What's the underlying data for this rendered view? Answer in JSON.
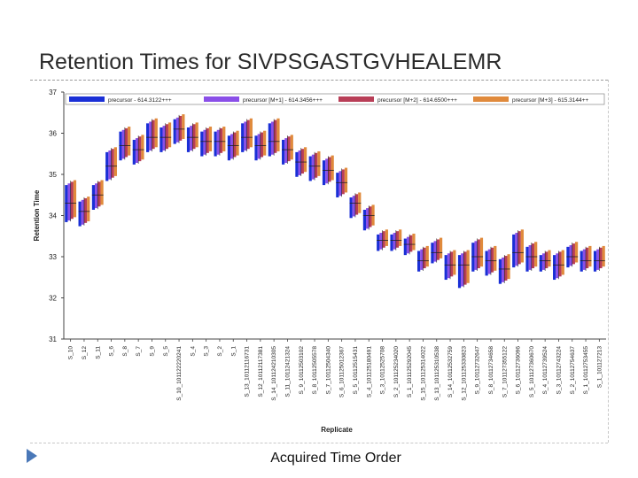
{
  "slide": {
    "title": "Retention Times for SIVPSGASTGVHEALEMR",
    "caption": "Acquired Time Order"
  },
  "chart_data": {
    "type": "box",
    "title": "",
    "xlabel": "Replicate",
    "ylabel": "Retention Time",
    "ylim": [
      31,
      37
    ],
    "yticks": [
      31,
      32,
      33,
      34,
      35,
      36,
      37
    ],
    "grid": false,
    "legend_position": "top",
    "series": [
      {
        "name": "precursor - 614.3122+++",
        "color": "#1a2fd6"
      },
      {
        "name": "precursor [M+1] - 614.3456+++",
        "color": "#8a4fe8"
      },
      {
        "name": "precursor [M+2] - 614.6500+++",
        "color": "#b83e57"
      },
      {
        "name": "precursor [M+3] - 615.3144++",
        "color": "#e08a3c"
      }
    ],
    "categories": [
      "S_10",
      "S_12",
      "S_11",
      "S_6",
      "S_8",
      "S_7",
      "S_9",
      "S_5",
      "S_10_101122220241",
      "S_4",
      "S_3",
      "S_2",
      "S_1",
      "S_13_10112116731",
      "S_12_10112117381",
      "S_14_101124210305",
      "S_11_10112421324",
      "S_9_10112503102",
      "S_8_10112505578",
      "S_7_10112504340",
      "S_6_101125012367",
      "S_5_10112515431",
      "S_4_101125180491",
      "S_3_10112525708",
      "S_2_101125234020",
      "S_1_101125292045",
      "S_15_101125314022",
      "S_13_101125310538",
      "S_14_10112532759",
      "S_12_101125330823",
      "S_9_10112732647",
      "S_8_10112734658",
      "S_7_101127355122",
      "S_6_10112736096",
      "S_5_101127360670",
      "S_4_10112739524",
      "S_3_10112743224",
      "S_2_10112754637",
      "S_1_10112753455",
      "S_1_101127213"
    ],
    "values": [
      34.3,
      34.1,
      34.5,
      35.2,
      35.7,
      35.6,
      35.9,
      35.9,
      36.1,
      35.9,
      35.8,
      35.8,
      35.7,
      35.9,
      35.7,
      35.8,
      35.6,
      35.3,
      35.2,
      35.1,
      34.8,
      34.3,
      34.0,
      33.4,
      33.4,
      33.3,
      32.9,
      33.1,
      32.8,
      32.8,
      33.0,
      32.9,
      32.7,
      33.1,
      33.0,
      32.9,
      32.8,
      33.0,
      32.9,
      32.9
    ],
    "ranges": [
      [
        33.9,
        34.8
      ],
      [
        33.8,
        34.4
      ],
      [
        34.2,
        34.8
      ],
      [
        34.9,
        35.6
      ],
      [
        35.4,
        36.1
      ],
      [
        35.3,
        35.9
      ],
      [
        35.6,
        36.3
      ],
      [
        35.6,
        36.2
      ],
      [
        35.8,
        36.4
      ],
      [
        35.6,
        36.2
      ],
      [
        35.5,
        36.1
      ],
      [
        35.5,
        36.1
      ],
      [
        35.4,
        36.0
      ],
      [
        35.6,
        36.3
      ],
      [
        35.4,
        36.0
      ],
      [
        35.5,
        36.3
      ],
      [
        35.3,
        35.9
      ],
      [
        35.0,
        35.6
      ],
      [
        34.9,
        35.5
      ],
      [
        34.8,
        35.4
      ],
      [
        34.5,
        35.1
      ],
      [
        34.0,
        34.5
      ],
      [
        33.7,
        34.2
      ],
      [
        33.2,
        33.6
      ],
      [
        33.2,
        33.6
      ],
      [
        33.1,
        33.5
      ],
      [
        32.7,
        33.2
      ],
      [
        32.9,
        33.4
      ],
      [
        32.5,
        33.1
      ],
      [
        32.3,
        33.1
      ],
      [
        32.7,
        33.4
      ],
      [
        32.6,
        33.2
      ],
      [
        32.4,
        33.0
      ],
      [
        32.8,
        33.6
      ],
      [
        32.7,
        33.3
      ],
      [
        32.7,
        33.1
      ],
      [
        32.5,
        33.1
      ],
      [
        32.8,
        33.3
      ],
      [
        32.7,
        33.2
      ],
      [
        32.7,
        33.2
      ]
    ]
  }
}
